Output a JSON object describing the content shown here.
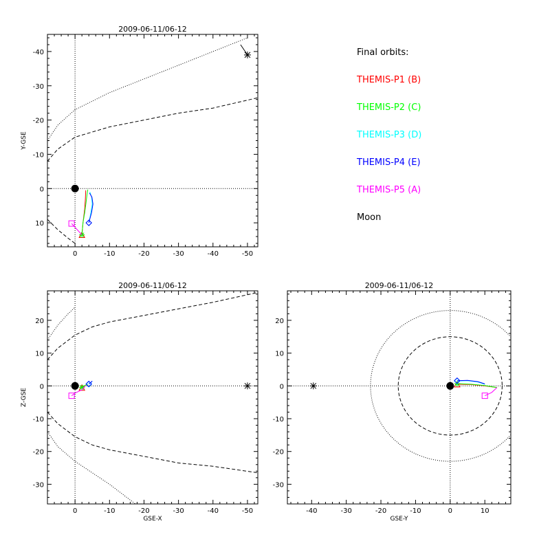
{
  "legend": {
    "title": "Final orbits:",
    "entries": [
      {
        "label": "THEMIS-P1 (B)",
        "color": "#ff0000"
      },
      {
        "label": "THEMIS-P2 (C)",
        "color": "#00ff00"
      },
      {
        "label": "THEMIS-P3 (D)",
        "color": "#00ffff"
      },
      {
        "label": "THEMIS-P4 (E)",
        "color": "#0000ff"
      },
      {
        "label": "THEMIS-P5 (A)",
        "color": "#ff00ff"
      },
      {
        "label": "Moon",
        "color": "#000000"
      }
    ]
  },
  "chart_data": [
    {
      "id": "xy",
      "type": "line",
      "title": "2009-06-11/06-12",
      "xlabel": "",
      "ylabel": "Y-GSE",
      "xlim": [
        8,
        -53
      ],
      "ylim": [
        17,
        -45
      ],
      "xticks": [
        0,
        -10,
        -20,
        -30,
        -40,
        -50
      ],
      "yticks": [
        10,
        0,
        -10,
        -20,
        -30,
        -40
      ],
      "boundaries": [
        {
          "name": "bow-shock",
          "style": "dotted",
          "x": [
            8,
            5,
            0,
            -10,
            -20,
            -30,
            -40,
            -50
          ],
          "y": [
            -14,
            -18.5,
            -23,
            -28,
            -32,
            -36,
            -40,
            -44
          ]
        },
        {
          "name": "magnetopause",
          "style": "dashed",
          "x": [
            8,
            5,
            0,
            -5,
            -10,
            -20,
            -30,
            -40,
            -53
          ],
          "y": [
            -8,
            -11.5,
            -15,
            -16.5,
            -18,
            -20,
            -22,
            -23.5,
            -26.5
          ]
        },
        {
          "name": "magnetopause-dawn",
          "style": "dashed",
          "x": [
            8,
            5,
            2,
            0
          ],
          "y": [
            9,
            12,
            14.5,
            16
          ]
        }
      ],
      "earth": {
        "x": 0,
        "y": 0
      },
      "moon": {
        "x": -50,
        "y": -39,
        "track": {
          "x": [
            -48,
            -50
          ],
          "y": [
            -42,
            -39
          ]
        }
      },
      "probes": [
        {
          "name": "THEMIS-P1 (B)",
          "color": "#ff0000",
          "marker": "triangle",
          "x": [
            -2,
            -2.3,
            -2.8,
            -3.0,
            -3.1
          ],
          "y": [
            13.5,
            10,
            6,
            3,
            0.5
          ]
        },
        {
          "name": "THEMIS-P2 (C)",
          "color": "#00ff00",
          "marker": "star",
          "x": [
            -2,
            -2.3,
            -2.8,
            -3.2,
            -3.5,
            -3.7
          ],
          "y": [
            13.5,
            10,
            7,
            4,
            1.5,
            0.3
          ]
        },
        {
          "name": "THEMIS-P3 (D)",
          "color": "#00ffff",
          "marker": "diamond",
          "x": [
            -4,
            -4.6,
            -5.0,
            -4.8,
            -4.3
          ],
          "y": [
            10,
            7,
            4.5,
            2.5,
            1
          ]
        },
        {
          "name": "THEMIS-P4 (E)",
          "color": "#0000ff",
          "marker": "diamond",
          "x": [
            -4,
            -4.8,
            -5.2,
            -4.9,
            -4.2
          ],
          "y": [
            10,
            7,
            4.5,
            2.5,
            1.3
          ]
        },
        {
          "name": "THEMIS-P5 (A)",
          "color": "#ff00ff",
          "marker": "square",
          "x": [
            1,
            -2
          ],
          "y": [
            10.2,
            13.5
          ]
        }
      ]
    },
    {
      "id": "xz",
      "type": "line",
      "title": "2009-06-11/06-12",
      "xlabel": "GSE-X",
      "ylabel": "Z-GSE",
      "xlim": [
        8,
        -53
      ],
      "ylim": [
        -36,
        29
      ],
      "xticks": [
        0,
        -10,
        -20,
        -30,
        -40,
        -50
      ],
      "yticks": [
        20,
        10,
        0,
        -10,
        -20,
        -30
      ],
      "boundaries": [
        {
          "name": "bow-shock-north",
          "style": "dotted",
          "x": [
            8,
            5,
            2,
            0
          ],
          "y": [
            14,
            18.5,
            22,
            24
          ]
        },
        {
          "name": "magnetopause-north",
          "style": "dashed",
          "x": [
            8,
            5,
            0,
            -5,
            -10,
            -20,
            -30,
            -40,
            -53
          ],
          "y": [
            8,
            11.5,
            15.5,
            18,
            19.5,
            21.5,
            23.5,
            25.5,
            28.5
          ]
        },
        {
          "name": "bow-shock-south",
          "style": "dotted",
          "x": [
            8,
            5,
            0,
            -5,
            -10,
            -17.5
          ],
          "y": [
            -14,
            -18.5,
            -23,
            -26.5,
            -30,
            -36
          ]
        },
        {
          "name": "magnetopause-south",
          "style": "dashed",
          "x": [
            8,
            5,
            0,
            -5,
            -10,
            -20,
            -30,
            -40,
            -53
          ],
          "y": [
            -8,
            -11.5,
            -15.5,
            -18,
            -19.5,
            -21.5,
            -23.5,
            -24.5,
            -26.5
          ]
        }
      ],
      "earth": {
        "x": 0,
        "y": 0
      },
      "moon": {
        "x": -50,
        "y": 0
      },
      "probes": [
        {
          "name": "THEMIS-P1 (B)",
          "color": "#ff0000",
          "marker": "triangle",
          "x": [
            -2,
            -2.8,
            -3.5
          ],
          "y": [
            -0.5,
            0,
            0.4
          ]
        },
        {
          "name": "THEMIS-P2 (C)",
          "color": "#00ff00",
          "marker": "star",
          "x": [
            -2,
            -2.8,
            -3.7
          ],
          "y": [
            -0.5,
            0.1,
            0.5
          ]
        },
        {
          "name": "THEMIS-P3 (D)",
          "color": "#00ffff",
          "marker": "diamond",
          "x": [
            -4,
            -4.6,
            -5
          ],
          "y": [
            0.5,
            1,
            1.4
          ]
        },
        {
          "name": "THEMIS-P4 (E)",
          "color": "#0000ff",
          "marker": "diamond",
          "x": [
            -4,
            -4.6,
            -5
          ],
          "y": [
            0.6,
            1.1,
            1.5
          ]
        },
        {
          "name": "THEMIS-P5 (A)",
          "color": "#ff00ff",
          "marker": "square",
          "x": [
            1,
            0,
            -2,
            -3
          ],
          "y": [
            -3,
            -2.2,
            -1.2,
            0
          ]
        }
      ]
    },
    {
      "id": "yz",
      "type": "line",
      "title": "2009-06-11/06-12",
      "xlabel": "GSE-Y",
      "ylabel": "",
      "xlim": [
        -47,
        17.5
      ],
      "ylim": [
        -36,
        29
      ],
      "xticks": [
        -40,
        -30,
        -20,
        -10,
        0,
        10
      ],
      "yticks": [
        20,
        10,
        0,
        -10,
        -20,
        -30
      ],
      "circles": [
        {
          "name": "bow-shock-ring",
          "style": "dotted",
          "r": 23
        },
        {
          "name": "magnetopause-ring",
          "style": "dashed",
          "r": 15
        }
      ],
      "earth": {
        "x": 0,
        "y": 0
      },
      "moon": {
        "x": -39.5,
        "y": 0
      },
      "probes": [
        {
          "name": "THEMIS-P1 (B)",
          "color": "#ff0000",
          "marker": "triangle",
          "x": [
            2,
            6,
            10,
            13.5
          ],
          "y": [
            0.5,
            0.4,
            0,
            -0.5
          ]
        },
        {
          "name": "THEMIS-P2 (C)",
          "color": "#00ff00",
          "marker": "star",
          "x": [
            2,
            6,
            10,
            13.5
          ],
          "y": [
            0.7,
            0.5,
            0.1,
            -0.5
          ]
        },
        {
          "name": "THEMIS-P3 (D)",
          "color": "#00ffff",
          "marker": "diamond",
          "x": [
            2,
            5,
            8,
            10
          ],
          "y": [
            1.5,
            1.6,
            1.2,
            0.5
          ]
        },
        {
          "name": "THEMIS-P4 (E)",
          "color": "#0000ff",
          "marker": "diamond",
          "x": [
            2,
            5,
            8,
            10
          ],
          "y": [
            1.6,
            1.7,
            1.3,
            0.6
          ]
        },
        {
          "name": "THEMIS-P5 (A)",
          "color": "#ff00ff",
          "marker": "square",
          "x": [
            10,
            12,
            13.5
          ],
          "y": [
            -3,
            -2,
            -0.5
          ]
        }
      ]
    }
  ]
}
